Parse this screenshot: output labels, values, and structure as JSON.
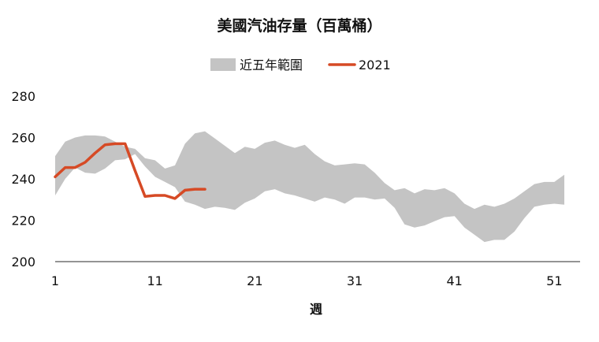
{
  "chart_data": {
    "type": "area",
    "title": "美國汽油存量（百萬桶）",
    "xlabel": "週",
    "ylabel": "",
    "xlim": [
      1,
      52
    ],
    "ylim": [
      200,
      280
    ],
    "x_ticks": [
      1,
      11,
      21,
      31,
      41,
      51
    ],
    "y_ticks": [
      200,
      220,
      240,
      260,
      280
    ],
    "grid": false,
    "legend_position": "top-center",
    "colors": {
      "range_band": "#c4c4c4",
      "line_2021": "#d64a25",
      "axis": "#555555"
    },
    "series": [
      {
        "name": "近五年範圍",
        "type": "area-range",
        "x": [
          1,
          2,
          3,
          4,
          5,
          6,
          7,
          8,
          9,
          10,
          11,
          12,
          13,
          14,
          15,
          16,
          17,
          18,
          19,
          20,
          21,
          22,
          23,
          24,
          25,
          26,
          27,
          28,
          29,
          30,
          31,
          32,
          33,
          34,
          35,
          36,
          37,
          38,
          39,
          40,
          41,
          42,
          43,
          44,
          45,
          46,
          47,
          48,
          49,
          50,
          51,
          52
        ],
        "upper": [
          251,
          258,
          260,
          261,
          261,
          260.5,
          258,
          255.5,
          254.5,
          250,
          249,
          245,
          246.5,
          257,
          262,
          263,
          259.5,
          256,
          252.5,
          255.5,
          254.5,
          257.5,
          258.5,
          256.5,
          255,
          256.5,
          252,
          248.5,
          246.5,
          247,
          247.5,
          247,
          243,
          238,
          234.5,
          235.5,
          233,
          235,
          234.5,
          235.5,
          233,
          228,
          225.5,
          227.5,
          226.5,
          228,
          230.5,
          234,
          237.5,
          238.5,
          238.5,
          242
        ],
        "lower": [
          232,
          240,
          245.5,
          243,
          242.5,
          245,
          249,
          249.5,
          252,
          246,
          241,
          238.5,
          236,
          229,
          227.5,
          225.5,
          226.5,
          226,
          225,
          228.5,
          230.5,
          234,
          235,
          233,
          232,
          230.5,
          229,
          231,
          230,
          228,
          231,
          231,
          230,
          230.5,
          226,
          218,
          216.5,
          217.5,
          219.5,
          221.5,
          222,
          216.5,
          213,
          209.5,
          210.5,
          210.5,
          214.5,
          221,
          226.5,
          227.5,
          228,
          227.5
        ]
      },
      {
        "name": "2021",
        "type": "line",
        "x": [
          1,
          2,
          3,
          4,
          5,
          6,
          7,
          8,
          9,
          10,
          11,
          12,
          13,
          14,
          15,
          16
        ],
        "values": [
          241,
          245.5,
          245.5,
          248,
          252.5,
          256.5,
          257,
          257,
          244,
          231.5,
          232,
          232,
          230.5,
          234.5,
          235,
          235
        ]
      }
    ]
  }
}
